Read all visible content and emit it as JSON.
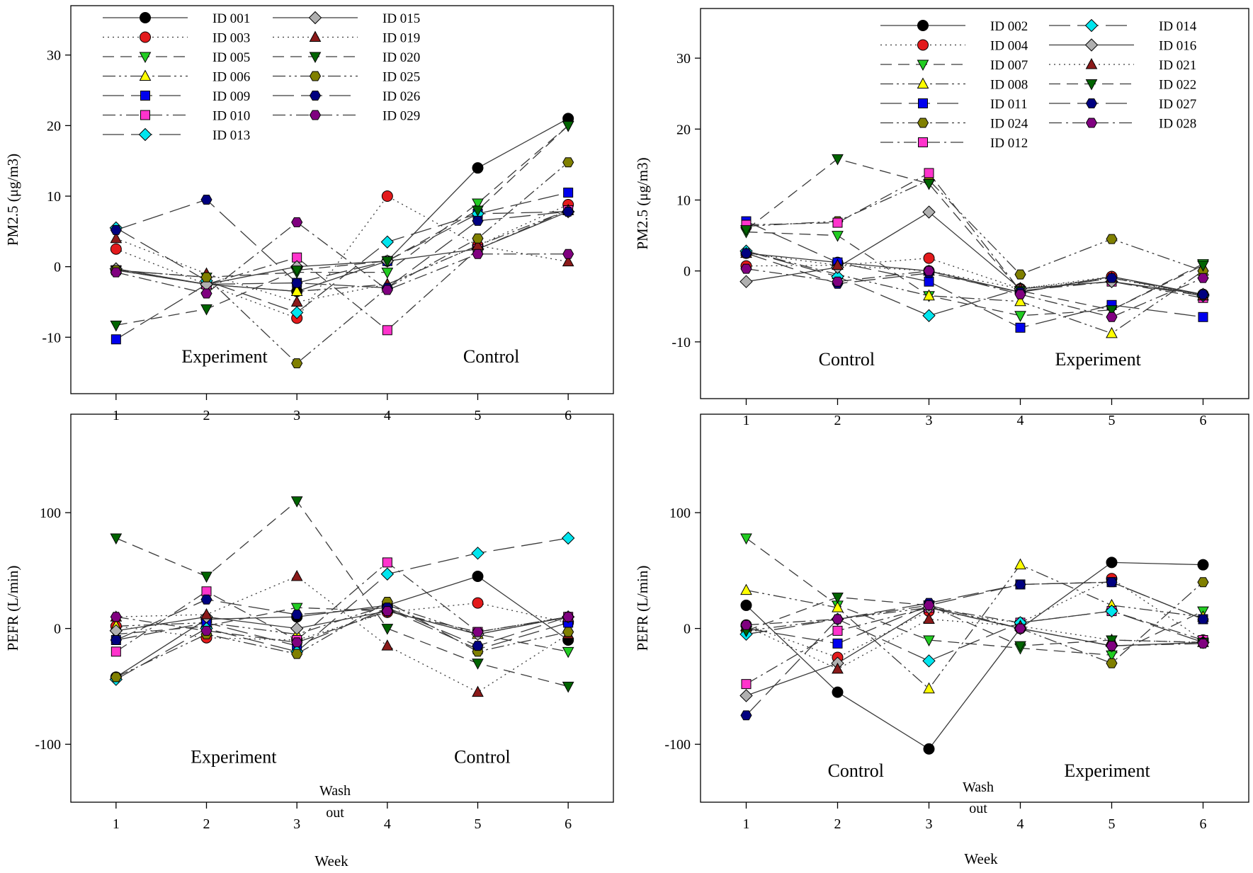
{
  "figure": {
    "shared_xlabel": "Week",
    "washout_label": [
      "Wash",
      "out"
    ]
  },
  "styles": {
    "ID 001": {
      "marker": "circle",
      "color": "#000000",
      "dash": "solid"
    },
    "ID 002": {
      "marker": "circle",
      "color": "#000000",
      "dash": "solid"
    },
    "ID 003": {
      "marker": "circle",
      "color": "#e31a1c",
      "dash": "dot"
    },
    "ID 004": {
      "marker": "circle",
      "color": "#e31a1c",
      "dash": "dot"
    },
    "ID 005": {
      "marker": "tri_down",
      "color": "#22cc22",
      "dash": "dash"
    },
    "ID 007": {
      "marker": "tri_down",
      "color": "#22cc22",
      "dash": "dash"
    },
    "ID 006": {
      "marker": "tri_up",
      "color": "#ffff00",
      "dash": "dashdotdot"
    },
    "ID 008": {
      "marker": "tri_up",
      "color": "#ffff00",
      "dash": "dashdotdot"
    },
    "ID 009": {
      "marker": "square",
      "color": "#0000ee",
      "dash": "longdash"
    },
    "ID 011": {
      "marker": "square",
      "color": "#0000ee",
      "dash": "longdash"
    },
    "ID 010": {
      "marker": "square",
      "color": "#ff33cc",
      "dash": "dashdot"
    },
    "ID 012": {
      "marker": "square",
      "color": "#ff33cc",
      "dash": "dashdot"
    },
    "ID 013": {
      "marker": "diamond",
      "color": "#00e5ee",
      "dash": "longdash"
    },
    "ID 014": {
      "marker": "diamond",
      "color": "#00e5ee",
      "dash": "longdash"
    },
    "ID 015": {
      "marker": "diamond",
      "color": "#b0b0b0",
      "dash": "solid"
    },
    "ID 016": {
      "marker": "diamond",
      "color": "#b0b0b0",
      "dash": "solid"
    },
    "ID 019": {
      "marker": "tri_up",
      "color": "#8b1a1a",
      "dash": "dot"
    },
    "ID 021": {
      "marker": "tri_up",
      "color": "#8b1a1a",
      "dash": "dot"
    },
    "ID 020": {
      "marker": "tri_down",
      "color": "#006400",
      "dash": "dash"
    },
    "ID 022": {
      "marker": "tri_down",
      "color": "#006400",
      "dash": "dash"
    },
    "ID 025": {
      "marker": "hexagon",
      "color": "#808000",
      "dash": "dashdotdot"
    },
    "ID 024": {
      "marker": "hexagon",
      "color": "#808000",
      "dash": "dashdotdot"
    },
    "ID 026": {
      "marker": "hexagon",
      "color": "#000080",
      "dash": "longdash"
    },
    "ID 027": {
      "marker": "hexagon",
      "color": "#000080",
      "dash": "longdash"
    },
    "ID 029": {
      "marker": "hexagon",
      "color": "#800080",
      "dash": "dashdot"
    },
    "ID 028": {
      "marker": "hexagon",
      "color": "#800080",
      "dash": "dashdot"
    }
  },
  "chart_data": [
    {
      "id": "top-left",
      "type": "line",
      "ylabel": "PM2.5 (μg/m3)",
      "xlim": [
        0.5,
        6.5
      ],
      "ylim": [
        -18,
        37
      ],
      "yticks": [
        -10,
        0,
        10,
        20,
        30
      ],
      "xticks": [
        1,
        2,
        3,
        4,
        5,
        6
      ],
      "x": [
        1,
        2,
        3,
        4,
        5,
        6
      ],
      "period_labels": [
        {
          "text": "Experiment",
          "x": 2.2,
          "y": -13.6
        },
        {
          "text": "Control",
          "x": 5.15,
          "y": -13.6
        }
      ],
      "legend_columns": [
        [
          "ID 001",
          "ID 003",
          "ID 005",
          "ID 006",
          "ID 009",
          "ID 010",
          "ID 013"
        ],
        [
          "ID 015",
          "ID 019",
          "ID 020",
          "ID 025",
          "ID 026",
          "ID 029"
        ]
      ],
      "series": [
        {
          "name": "ID 001",
          "values": [
            -0.5,
            -2.5,
            -3.5,
            0.8,
            14,
            21
          ]
        },
        {
          "name": "ID 003",
          "values": [
            2.5,
            -2.5,
            -7.3,
            10,
            3,
            8.8
          ]
        },
        {
          "name": "ID 005",
          "values": [
            -0.5,
            -1.5,
            -0.8,
            -0.8,
            9,
            20
          ]
        },
        {
          "name": "ID 006",
          "values": [
            -0.3,
            -2.5,
            -3.5,
            -2.5,
            3,
            8
          ]
        },
        {
          "name": "ID 009",
          "values": [
            -10.3,
            -2.5,
            -2.3,
            0.8,
            7.5,
            10.5
          ]
        },
        {
          "name": "ID 010",
          "values": [
            -0.5,
            -2.5,
            1.3,
            -9,
            2.5,
            8
          ]
        },
        {
          "name": "ID 013",
          "values": [
            5.5,
            -2,
            -6.5,
            3.5,
            7.5,
            7.8
          ]
        },
        {
          "name": "ID 015",
          "values": [
            -0.3,
            -2.5,
            0,
            0.8,
            2.5,
            7.8
          ]
        },
        {
          "name": "ID 019",
          "values": [
            4,
            -1,
            -5,
            -2.5,
            3,
            0.7
          ]
        },
        {
          "name": "ID 020",
          "values": [
            -8.3,
            -6,
            -0.5,
            0.8,
            8,
            20
          ]
        },
        {
          "name": "ID 025",
          "values": [
            -0.5,
            -1.5,
            -13.7,
            -3,
            4,
            14.8
          ]
        },
        {
          "name": "ID 026",
          "values": [
            5.2,
            9.5,
            -2.3,
            -3,
            6.5,
            7.8
          ]
        },
        {
          "name": "ID 029",
          "values": [
            -0.8,
            -3.8,
            6.3,
            -3.3,
            1.8,
            1.8
          ]
        }
      ]
    },
    {
      "id": "top-right",
      "type": "line",
      "ylabel": "PM2.5 (μg/m3)",
      "xlim": [
        0.5,
        6.5
      ],
      "ylim": [
        -18,
        37
      ],
      "yticks": [
        -10,
        0,
        10,
        20,
        30
      ],
      "xticks": [
        1,
        2,
        3,
        4,
        5,
        6
      ],
      "x": [
        1,
        2,
        3,
        4,
        5,
        6
      ],
      "period_labels": [
        {
          "text": "Control",
          "x": 2.1,
          "y": -13.3
        },
        {
          "text": "Experiment",
          "x": 4.85,
          "y": -13.3
        }
      ],
      "legend_columns": [
        [
          "ID 002",
          "ID 004",
          "ID 007",
          "ID 008",
          "ID 011",
          "ID 024",
          "ID 012"
        ],
        [
          "ID 014",
          "ID 016",
          "ID 021",
          "ID 022",
          "ID 027",
          "ID 028"
        ]
      ],
      "series": [
        {
          "name": "ID 002",
          "values": [
            2.5,
            1.2,
            0,
            -3,
            -0.8,
            -3.3
          ]
        },
        {
          "name": "ID 004",
          "values": [
            0.7,
            0.8,
            1.8,
            -2.5,
            -0.8,
            -3.5
          ]
        },
        {
          "name": "ID 007",
          "values": [
            5.5,
            5,
            -3.5,
            -6.3,
            -5.5,
            1
          ]
        },
        {
          "name": "ID 008",
          "values": [
            2.8,
            -0.5,
            -3.5,
            -4.3,
            -8.8,
            0
          ]
        },
        {
          "name": "ID 011",
          "values": [
            7,
            1.2,
            -1.5,
            -8,
            -4.8,
            -6.5
          ]
        },
        {
          "name": "ID 024",
          "values": [
            6.3,
            7,
            12.8,
            -0.5,
            4.5,
            0
          ]
        },
        {
          "name": "ID 012",
          "values": [
            6.5,
            6.8,
            13.8,
            -2.8,
            -1.5,
            -3.8
          ]
        },
        {
          "name": "ID 014",
          "values": [
            2.8,
            -0.8,
            -6.3,
            -2.5,
            -1.5,
            -3.5
          ]
        },
        {
          "name": "ID 016",
          "values": [
            -1.5,
            0.5,
            8.3,
            -2.5,
            -1.5,
            -3.3
          ]
        },
        {
          "name": "ID 021",
          "values": [
            2.5,
            0.8,
            0,
            -2.5,
            -1,
            -3.5
          ]
        },
        {
          "name": "ID 022",
          "values": [
            5.8,
            15.8,
            12.3,
            -2.8,
            -5.5,
            0.8
          ]
        },
        {
          "name": "ID 027",
          "values": [
            2.5,
            -1.8,
            -0.3,
            -3,
            -1,
            -3.3
          ]
        },
        {
          "name": "ID 028",
          "values": [
            0.3,
            -1.5,
            0,
            -3.3,
            -6.5,
            -1
          ]
        }
      ]
    },
    {
      "id": "bottom-left",
      "type": "line",
      "ylabel": "PEFR (L/min)",
      "xlabel": "Week",
      "xlim": [
        0.5,
        6.5
      ],
      "ylim": [
        -150,
        185
      ],
      "yticks": [
        -100,
        0,
        100
      ],
      "xticks": [
        1,
        2,
        3,
        4,
        5,
        6
      ],
      "x": [
        1,
        2,
        3,
        4,
        5,
        6
      ],
      "period_labels": [
        {
          "text": "Experiment",
          "x": 2.3,
          "y": -116
        },
        {
          "text": "Control",
          "x": 5.05,
          "y": -116
        }
      ],
      "series": [
        {
          "name": "ID 001",
          "values": [
            -42,
            8,
            10,
            20,
            45,
            -10
          ]
        },
        {
          "name": "ID 003",
          "values": [
            2,
            -8,
            -10,
            14,
            22,
            5
          ]
        },
        {
          "name": "ID 005",
          "values": [
            -5,
            2,
            18,
            15,
            -5,
            -20
          ]
        },
        {
          "name": "ID 006",
          "values": [
            2,
            5,
            -5,
            20,
            -5,
            10
          ]
        },
        {
          "name": "ID 009",
          "values": [
            -10,
            5,
            -15,
            17,
            -18,
            5
          ]
        },
        {
          "name": "ID 010",
          "values": [
            -20,
            32,
            -10,
            57,
            -3,
            10
          ]
        },
        {
          "name": "ID 013",
          "values": [
            -44,
            0,
            -20,
            47,
            65,
            78
          ]
        },
        {
          "name": "ID 015",
          "values": [
            -2,
            10,
            0,
            15,
            -5,
            10
          ]
        },
        {
          "name": "ID 019",
          "values": [
            10,
            12,
            45,
            -15,
            -55,
            -5
          ]
        },
        {
          "name": "ID 020",
          "values": [
            78,
            45,
            110,
            0,
            -30,
            -50
          ]
        },
        {
          "name": "ID 025",
          "values": [
            -42,
            -5,
            -22,
            23,
            -20,
            -3
          ]
        },
        {
          "name": "ID 026",
          "values": [
            -10,
            25,
            12,
            18,
            -15,
            10
          ]
        },
        {
          "name": "ID 029",
          "values": [
            10,
            -2,
            -12,
            15,
            -3,
            10
          ]
        }
      ]
    },
    {
      "id": "bottom-right",
      "type": "line",
      "ylabel": "PEFR (L/min)",
      "xlabel": "Week",
      "xlim": [
        0.5,
        6.5
      ],
      "ylim": [
        -150,
        185
      ],
      "yticks": [
        -100,
        0,
        100
      ],
      "xticks": [
        1,
        2,
        3,
        4,
        5,
        6
      ],
      "x": [
        1,
        2,
        3,
        4,
        5,
        6
      ],
      "period_labels": [
        {
          "text": "Control",
          "x": 2.2,
          "y": -128
        },
        {
          "text": "Experiment",
          "x": 4.95,
          "y": -128
        }
      ],
      "series": [
        {
          "name": "ID 002",
          "values": [
            20,
            -55,
            -104,
            0,
            57,
            55
          ]
        },
        {
          "name": "ID 004",
          "values": [
            3,
            -25,
            15,
            5,
            43,
            -10
          ]
        },
        {
          "name": "ID 007",
          "values": [
            78,
            20,
            -10,
            -17,
            -23,
            15
          ]
        },
        {
          "name": "ID 008",
          "values": [
            33,
            18,
            -52,
            55,
            20,
            10
          ]
        },
        {
          "name": "ID 011",
          "values": [
            0,
            -13,
            20,
            38,
            40,
            8
          ]
        },
        {
          "name": "ID 024",
          "values": [
            -2,
            8,
            18,
            0,
            -30,
            40
          ]
        },
        {
          "name": "ID 012",
          "values": [
            -48,
            -2,
            18,
            5,
            15,
            -10
          ]
        },
        {
          "name": "ID 014",
          "values": [
            -5,
            8,
            -28,
            5,
            15,
            -12
          ]
        },
        {
          "name": "ID 016",
          "values": [
            -58,
            -30,
            18,
            0,
            -15,
            -12
          ]
        },
        {
          "name": "ID 021",
          "values": [
            2,
            -35,
            8,
            2,
            -10,
            -12
          ]
        },
        {
          "name": "ID 022",
          "values": [
            -2,
            27,
            20,
            -15,
            -10,
            -12
          ]
        },
        {
          "name": "ID 027",
          "values": [
            -75,
            8,
            22,
            38,
            40,
            8
          ]
        },
        {
          "name": "ID 028",
          "values": [
            3,
            8,
            20,
            0,
            -15,
            -13
          ]
        }
      ]
    }
  ]
}
